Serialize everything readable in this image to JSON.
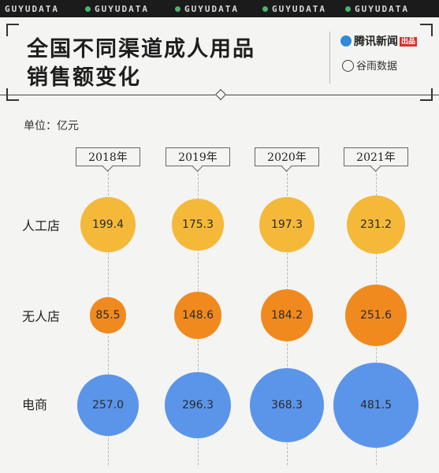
{
  "banner": {
    "text": "GUYUDATA"
  },
  "header": {
    "title_line1": "全国不同渠道成人用品",
    "title_line2": "销售额变化",
    "logo_tencent": "腾讯新闻",
    "logo_badge": "出品",
    "logo_guyu": "谷雨数据"
  },
  "unit_label": "单位：亿元",
  "colors": {
    "人工店": "#f5b93a",
    "无人店": "#f08a1f",
    "电商": "#5b95ea"
  },
  "chart_data": {
    "type": "bubble",
    "categories": [
      "2018年",
      "2019年",
      "2020年",
      "2021年"
    ],
    "series": [
      {
        "name": "人工店",
        "values": [
          199.4,
          175.3,
          197.3,
          231.2
        ]
      },
      {
        "name": "无人店",
        "values": [
          85.5,
          148.6,
          184.2,
          251.6
        ]
      },
      {
        "name": "电商",
        "values": [
          257.0,
          296.3,
          368.3,
          481.5
        ]
      }
    ]
  },
  "labels": {
    "y2018": "2018年",
    "y2019": "2019年",
    "y2020": "2020年",
    "y2021": "2021年",
    "row1": "人工店",
    "row2": "无人店",
    "row3": "电商"
  }
}
